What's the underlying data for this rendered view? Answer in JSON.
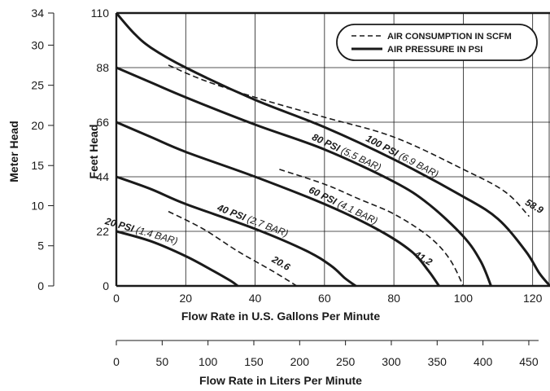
{
  "chart_data": {
    "type": "line",
    "xlabel": "Flow Rate in U.S. Gallons Per Minute",
    "ylabel": "Feet Head",
    "xlim": [
      0,
      125
    ],
    "ylim": [
      0,
      110
    ],
    "x_ticks": [
      0,
      20,
      40,
      60,
      80,
      100,
      120
    ],
    "y_ticks": [
      0,
      22,
      44,
      66,
      88,
      110
    ],
    "grid": true,
    "legend": {
      "position": "top-right",
      "entries": [
        {
          "label": "AIR CONSUMPTION IN SCFM",
          "style": "dashed"
        },
        {
          "label": "AIR PRESSURE IN PSI",
          "style": "solid"
        }
      ]
    },
    "secondary_y_axis": {
      "label": "Meter Head",
      "ticks": [
        0,
        5,
        10,
        15,
        20,
        25,
        30,
        34
      ]
    },
    "secondary_x_axis": {
      "label": "Flow Rate in Liters Per Minute",
      "ticks": [
        0,
        50,
        100,
        150,
        200,
        250,
        300,
        350,
        400,
        450
      ]
    },
    "pressure_series": [
      {
        "psi": "100 PSI",
        "bar": "(6.9 BAR)",
        "x": [
          0,
          5,
          10,
          20,
          40,
          60,
          80,
          100,
          110,
          118,
          122,
          125
        ],
        "y": [
          110,
          102,
          96,
          88,
          75,
          64,
          51,
          36,
          27,
          14,
          5,
          0
        ]
      },
      {
        "psi": "80 PSI",
        "bar": "(5.5 BAR)",
        "x": [
          0,
          10,
          20,
          40,
          60,
          80,
          90,
          100,
          105,
          108
        ],
        "y": [
          88,
          82,
          76,
          65,
          55,
          42,
          33,
          20,
          10,
          0
        ]
      },
      {
        "psi": "60 PSI",
        "bar": "(4.1 BAR)",
        "x": [
          0,
          10,
          20,
          40,
          60,
          75,
          85,
          90,
          93
        ],
        "y": [
          66,
          60,
          54,
          44,
          33,
          23,
          14,
          6,
          0
        ]
      },
      {
        "psi": "40 PSI",
        "bar": "(2.7 BAR)",
        "x": [
          0,
          10,
          20,
          40,
          55,
          62,
          66,
          69
        ],
        "y": [
          44,
          39,
          33,
          23,
          14,
          8,
          3,
          0
        ]
      },
      {
        "psi": "20 PSI",
        "bar": "(1.4 BAR)",
        "x": [
          0,
          10,
          20,
          28,
          33,
          35
        ],
        "y": [
          22,
          18,
          12,
          6,
          2,
          0
        ]
      }
    ],
    "consumption_series": [
      {
        "scfm": "20.6",
        "x": [
          15,
          25,
          35,
          45,
          52
        ],
        "y": [
          30,
          23,
          14,
          6,
          0
        ]
      },
      {
        "scfm": "41.2",
        "x": [
          47,
          60,
          70,
          80,
          90,
          96,
          100
        ],
        "y": [
          47,
          41,
          35,
          29,
          20,
          11,
          0
        ]
      },
      {
        "scfm": "58.9",
        "x": [
          15,
          25,
          40,
          60,
          80,
          100,
          112,
          119
        ],
        "y": [
          89,
          83,
          76,
          68,
          60,
          47,
          38,
          28
        ]
      }
    ]
  }
}
